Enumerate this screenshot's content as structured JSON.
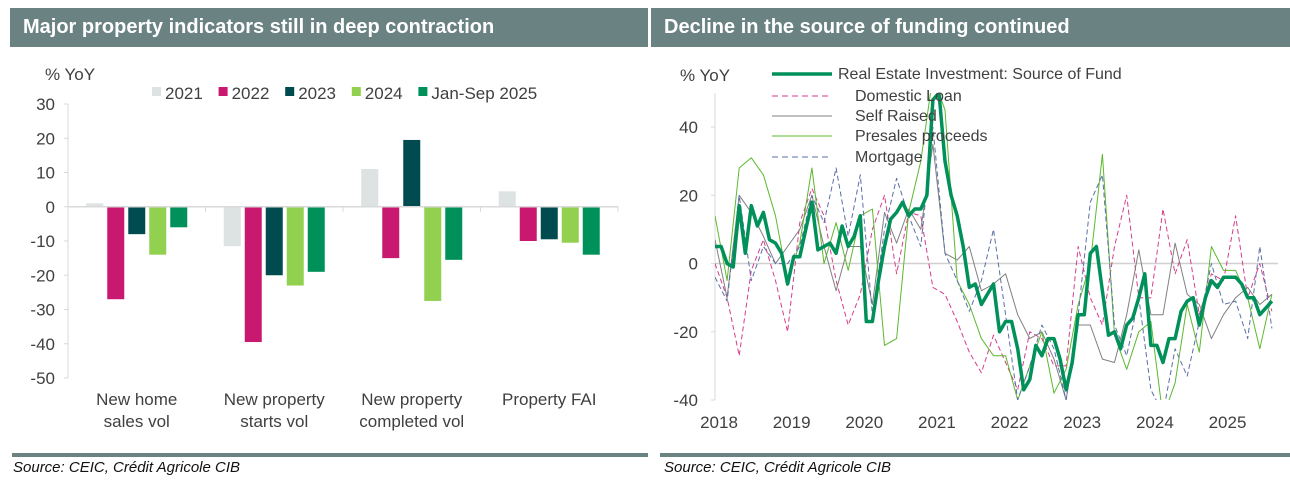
{
  "left_panel": {
    "title": "Major property indicators still in deep contraction",
    "source": "Source: CEIC, Crédit Agricole CIB"
  },
  "right_panel": {
    "title": "Decline in the source of funding continued",
    "source": "Source: CEIC, Crédit Agricole CIB"
  },
  "chart_data": [
    {
      "type": "bar",
      "title": "Major property indicators still in deep contraction",
      "ylabel": "% YoY",
      "ylim": [
        -50,
        30
      ],
      "yticks": [
        30,
        20,
        10,
        0,
        -10,
        -20,
        -30,
        -40,
        -50
      ],
      "categories": [
        [
          "New home",
          "sales vol"
        ],
        [
          "New property",
          "starts vol"
        ],
        [
          "New property",
          "completed vol"
        ],
        [
          "Property FAI"
        ]
      ],
      "legend_position": "top",
      "series": [
        {
          "name": "2021",
          "color": "#dde2e3",
          "values": [
            1,
            -11.5,
            11,
            4.5
          ]
        },
        {
          "name": "2022",
          "color": "#c8186f",
          "values": [
            -27,
            -39.5,
            -15,
            -10
          ]
        },
        {
          "name": "2023",
          "color": "#004b50",
          "values": [
            -8,
            -20,
            19.5,
            -9.5
          ]
        },
        {
          "name": "2024",
          "color": "#92d050",
          "values": [
            -14,
            -23,
            -27.5,
            -10.5
          ]
        },
        {
          "name": "Jan-Sep 2025",
          "color": "#00915a",
          "values": [
            -6,
            -19,
            -15.5,
            -14
          ]
        }
      ]
    },
    {
      "type": "line",
      "title": "Decline in the source of funding continued",
      "ylabel": "% YoY",
      "ylim": [
        -40,
        50
      ],
      "yticks": [
        40,
        20,
        0,
        -20,
        -40
      ],
      "xticks": [
        "2018",
        "2019",
        "2020",
        "2021",
        "2022",
        "2023",
        "2024",
        "2025"
      ],
      "xlim": [
        2018,
        2025.75
      ],
      "legend_position": "top",
      "series": [
        {
          "name": "Real Estate Investment: Source of Fund",
          "color": "#00915a",
          "style": "thick",
          "start": 2018,
          "step_months": 1,
          "values": [
            5,
            5,
            0,
            -1,
            17,
            3,
            17,
            11,
            15,
            7,
            6,
            3,
            -6,
            2,
            2,
            10,
            18,
            4,
            5,
            6,
            3,
            11,
            5,
            8,
            14,
            -17,
            -17,
            -5,
            5,
            13,
            15,
            18,
            14,
            16,
            16,
            20,
            48,
            50,
            30,
            20,
            14,
            5,
            -7,
            -6,
            -12,
            -9,
            -6,
            -20,
            -17,
            -17,
            -25,
            -37,
            -34,
            -24,
            -27,
            -22,
            -22,
            -28,
            -37,
            -29,
            -15,
            -15,
            3,
            5,
            -8,
            -21,
            -20,
            -25,
            -18,
            -16,
            -10,
            -3,
            -24,
            -24,
            -29,
            -22,
            -22,
            -14,
            -11,
            -10,
            -18,
            -10,
            -5,
            -7,
            -4,
            -4,
            -4,
            -6,
            -10,
            -10,
            -15,
            -13,
            -11
          ]
        },
        {
          "name": "Domestic Loan",
          "color": "#d63c8c",
          "style": "dashed",
          "start": 2018,
          "step_months": 2,
          "values": [
            0,
            -10,
            -27,
            -2,
            7,
            -5,
            -20,
            12,
            22,
            14,
            -5,
            -18,
            -9,
            10,
            20,
            -3,
            15,
            14,
            -7,
            -9,
            -17,
            -26,
            -32,
            -21,
            -29,
            -37,
            -20,
            -22,
            -30,
            -30,
            5,
            -10,
            -18,
            5,
            20,
            -10,
            -10,
            16,
            -3,
            7,
            -15,
            -3,
            -5,
            14,
            -10,
            0,
            -14
          ]
        },
        {
          "name": "Self Raised",
          "color": "#808080",
          "style": "thin",
          "start": 2018,
          "step_months": 2,
          "values": [
            7,
            -10,
            20,
            15,
            8,
            0,
            5,
            10,
            20,
            5,
            -8,
            5,
            5,
            -12,
            15,
            6,
            16,
            10,
            35,
            3,
            1,
            5,
            -8,
            -6,
            -3,
            -15,
            -22,
            -20,
            -28,
            -40,
            -18,
            -18,
            -28,
            -29,
            -15,
            4,
            -15,
            -15,
            6,
            -9,
            -12,
            -22,
            -15,
            -10,
            -7,
            -12,
            -9
          ]
        },
        {
          "name": "Presales proceeds",
          "color": "#5cb82e",
          "style": "thin",
          "start": 2018,
          "step_months": 2,
          "values": [
            14,
            -5,
            28,
            31,
            26,
            14,
            -5,
            6,
            28,
            0,
            12,
            -2,
            14,
            16,
            -24,
            -22,
            15,
            30,
            55,
            45,
            -5,
            -12,
            -22,
            -27,
            -27,
            -40,
            -30,
            -20,
            -38,
            -31,
            -12,
            0,
            32,
            -21,
            -31,
            -20,
            -17,
            -45,
            -35,
            -12,
            -26,
            5,
            -2,
            -2,
            -10,
            -25,
            -9
          ]
        },
        {
          "name": "Mortgage",
          "color": "#5a6fa8",
          "style": "dashed",
          "start": 2018,
          "step_months": 2,
          "values": [
            -4,
            -11,
            20,
            -5,
            5,
            0,
            0,
            5,
            20,
            12,
            28,
            8,
            26,
            -15,
            10,
            25,
            14,
            5,
            40,
            3,
            -5,
            -14,
            -5,
            10,
            -15,
            -40,
            -30,
            -18,
            -25,
            -40,
            -15,
            18,
            26,
            -18,
            -27,
            -10,
            -37,
            -44,
            -25,
            -33,
            -17,
            0,
            -12,
            -11,
            -22,
            5,
            -19
          ]
        }
      ]
    }
  ]
}
